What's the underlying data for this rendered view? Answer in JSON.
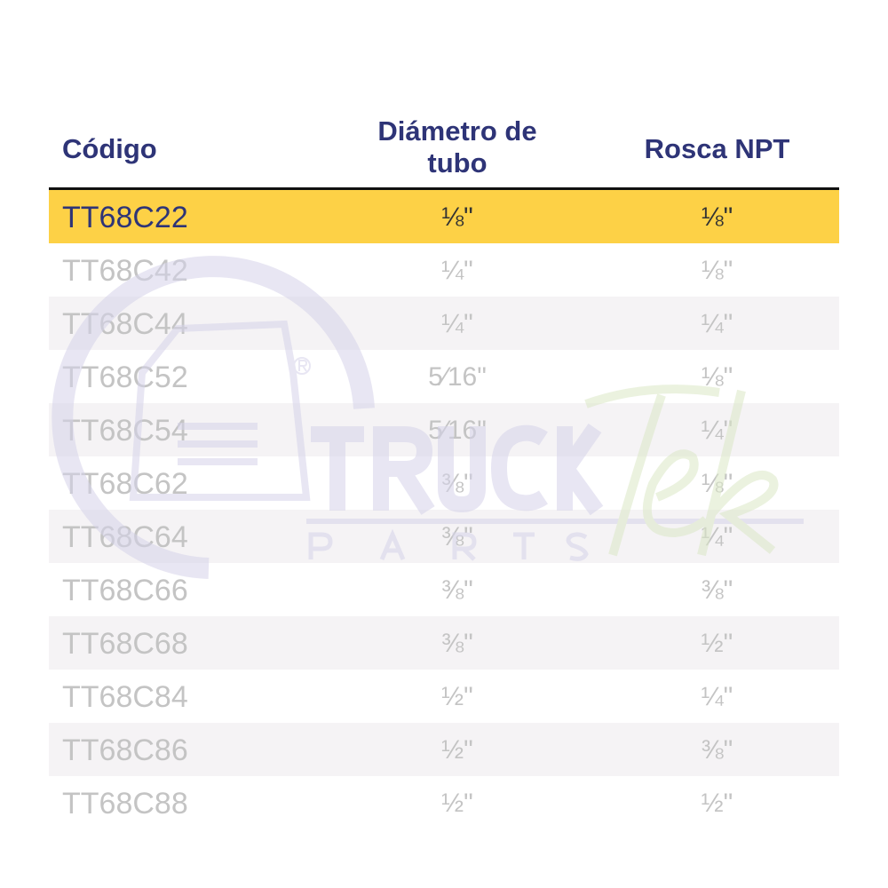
{
  "header": {
    "code": "Código",
    "tube_diameter": "Diámetro de tubo",
    "npt_thread": "Rosca NPT"
  },
  "rows": [
    {
      "code": "TT68C22",
      "tube": "⅛\"",
      "npt": "⅛\"",
      "highlighted": true
    },
    {
      "code": "TT68C42",
      "tube": "¼\"",
      "npt": "⅛\""
    },
    {
      "code": "TT68C44",
      "tube": "¼\"",
      "npt": "¼\""
    },
    {
      "code": "TT68C52",
      "tube": "5⁄16\"",
      "npt": "⅛\""
    },
    {
      "code": "TT68C54",
      "tube": "5⁄16\"",
      "npt": "¼\""
    },
    {
      "code": "TT68C62",
      "tube": "⅜\"",
      "npt": "⅛\""
    },
    {
      "code": "TT68C64",
      "tube": "⅜\"",
      "npt": "¼\""
    },
    {
      "code": "TT68C66",
      "tube": "⅜\"",
      "npt": "⅜\""
    },
    {
      "code": "TT68C68",
      "tube": "⅜\"",
      "npt": "½\""
    },
    {
      "code": "TT68C84",
      "tube": "½\"",
      "npt": "¼\""
    },
    {
      "code": "TT68C86",
      "tube": "½\"",
      "npt": "⅜\""
    },
    {
      "code": "TT68C88",
      "tube": "½\"",
      "npt": "½\""
    }
  ],
  "watermark": {
    "brand": "TRUCK",
    "script": "Tek",
    "sub": "PARTS",
    "registered": "®"
  },
  "colors": {
    "header_text": "#2e3477",
    "highlight": "#fdd146",
    "stripe": "#f5f3f5",
    "muted_text": "#c4c4c4"
  }
}
